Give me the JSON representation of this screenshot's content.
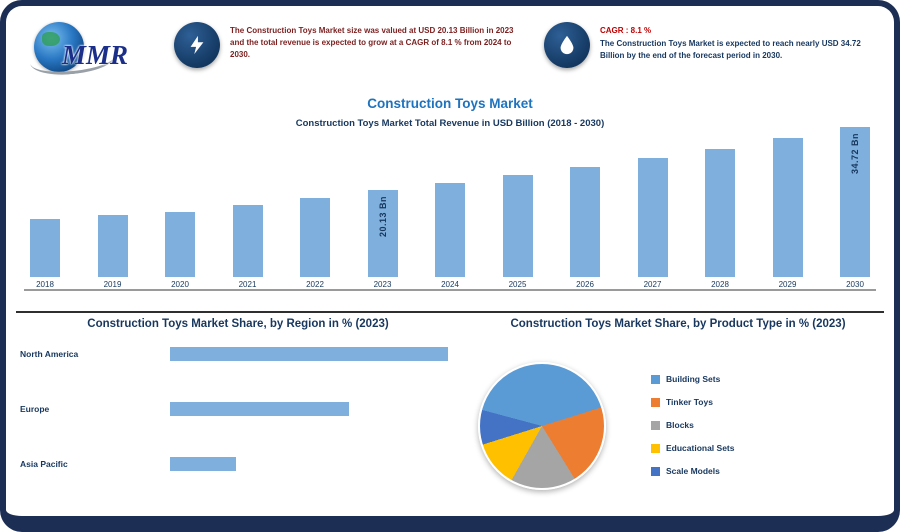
{
  "brand": {
    "logo_text": "MMR"
  },
  "header": {
    "highlight1": {
      "icon": "lightning-icon",
      "text": "The Construction Toys Market size was valued at USD 20.13 Billion in 2023 and the total revenue is expected to grow at a CAGR of 8.1 % from 2024 to 2030."
    },
    "highlight2": {
      "icon": "droplet-icon",
      "label": "CAGR : 8.1 %",
      "text": "The Construction Toys Market is expected to reach nearly USD 34.72 Billion by the end of the forecast period in 2030."
    },
    "title": "Construction Toys Market",
    "subtitle": "Construction Toys Market Total Revenue in USD Billion (2018 - 2030)"
  },
  "chart_data": [
    {
      "type": "bar",
      "name": "revenue-by-year",
      "title": "Construction Toys Market Total Revenue in USD Billion (2018 - 2030)",
      "categories": [
        "2018",
        "2019",
        "2020",
        "2021",
        "2022",
        "2023",
        "2024",
        "2025",
        "2026",
        "2027",
        "2028",
        "2029",
        "2030"
      ],
      "values": [
        13.4,
        14.4,
        15.1,
        16.6,
        18.3,
        20.13,
        21.8,
        23.5,
        25.4,
        27.5,
        29.7,
        32.1,
        34.72
      ],
      "unit": "USD Bn",
      "ylim": [
        0,
        34.72
      ],
      "bar_color": "#7fafdc",
      "value_labels": {
        "2023": "20.13 Bn",
        "2030": "34.72 Bn"
      },
      "grid": false
    },
    {
      "type": "hbar",
      "name": "share-by-region",
      "title": "Construction Toys Market Share, by Region in % (2023)",
      "categories": [
        "North America",
        "Europe",
        "Asia Pacific"
      ],
      "values": [
        42,
        27,
        10
      ],
      "unit": "%",
      "bar_color": "#7fafdc"
    },
    {
      "type": "pie",
      "name": "share-by-product",
      "title": "Construction Toys Market Share, by Product Type in % (2023)",
      "labels": [
        "Building Sets",
        "Tinker Toys",
        "Blocks",
        "Educational Sets",
        "Scale Models"
      ],
      "values": [
        41,
        21,
        17,
        12,
        9
      ],
      "colors": [
        "#5b9bd5",
        "#ed7d31",
        "#a5a5a5",
        "#ffc000",
        "#4472c4"
      ],
      "start_angle": 285,
      "legend_position": "right",
      "unit": "%"
    }
  ]
}
